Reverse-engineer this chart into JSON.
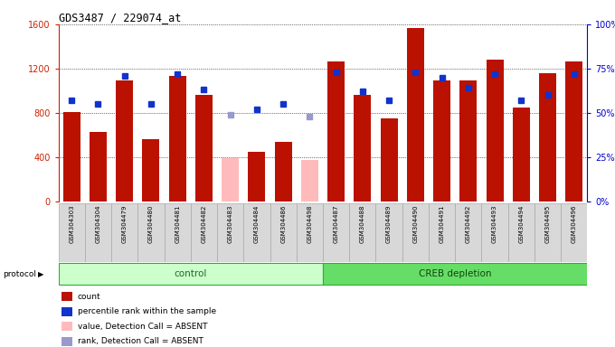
{
  "title": "GDS3487 / 229074_at",
  "samples": [
    "GSM304303",
    "GSM304304",
    "GSM304479",
    "GSM304480",
    "GSM304481",
    "GSM304482",
    "GSM304483",
    "GSM304484",
    "GSM304486",
    "GSM304498",
    "GSM304487",
    "GSM304488",
    "GSM304489",
    "GSM304490",
    "GSM304491",
    "GSM304492",
    "GSM304493",
    "GSM304494",
    "GSM304495",
    "GSM304496"
  ],
  "counts": [
    810,
    630,
    1090,
    560,
    1130,
    960,
    390,
    450,
    540,
    370,
    1260,
    960,
    750,
    1570,
    1090,
    1090,
    1280,
    850,
    1160,
    1265
  ],
  "percentile_ranks": [
    57,
    55,
    71,
    55,
    72,
    63,
    49,
    52,
    55,
    48,
    73,
    62,
    57,
    73,
    70,
    64,
    72,
    57,
    60,
    72
  ],
  "absent": [
    false,
    false,
    false,
    false,
    false,
    false,
    true,
    false,
    false,
    true,
    false,
    false,
    false,
    false,
    false,
    false,
    false,
    false,
    false,
    false
  ],
  "control_count": 10,
  "creb_count": 10,
  "bar_color_present": "#bb1100",
  "bar_color_absent": "#ffbbbb",
  "dot_color_present": "#1133cc",
  "dot_color_absent": "#9999cc",
  "ylim_left": [
    0,
    1600
  ],
  "ylim_right": [
    0,
    100
  ],
  "yticks_left": [
    0,
    400,
    800,
    1200,
    1600
  ],
  "ytick_labels_right": [
    "0%",
    "25%",
    "50%",
    "75%",
    "100%"
  ],
  "yticks_right": [
    0,
    25,
    50,
    75,
    100
  ],
  "control_label": "control",
  "creb_label": "CREB depletion",
  "protocol_label": "protocol",
  "legend_items": [
    {
      "label": "count",
      "color": "#bb1100"
    },
    {
      "label": "percentile rank within the sample",
      "color": "#1133cc"
    },
    {
      "label": "value, Detection Call = ABSENT",
      "color": "#ffbbbb"
    },
    {
      "label": "rank, Detection Call = ABSENT",
      "color": "#9999cc"
    }
  ],
  "bg_color": "#d8d8d8",
  "control_bg": "#ccffcc",
  "creb_bg": "#66dd66",
  "grid_color": "black",
  "left_axis_color": "#cc2200",
  "right_axis_color": "#0000cc"
}
